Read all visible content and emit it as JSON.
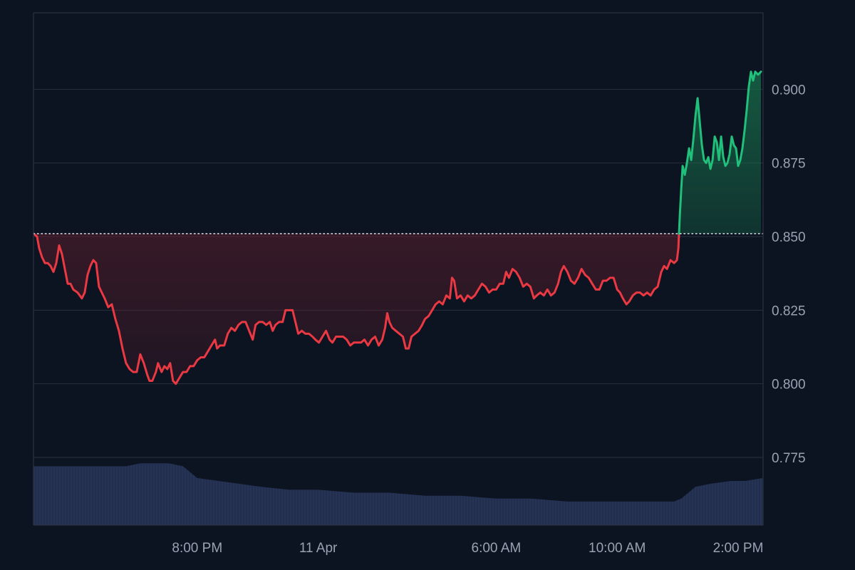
{
  "chart_data": {
    "type": "line",
    "baseline": 0.851,
    "ylim": [
      0.752,
      0.926
    ],
    "y_ticks": [
      {
        "value": 0.775,
        "label": "0.775"
      },
      {
        "value": 0.8,
        "label": "0.800"
      },
      {
        "value": 0.825,
        "label": "0.825"
      },
      {
        "value": 0.85,
        "label": "0.850"
      },
      {
        "value": 0.875,
        "label": "0.875"
      },
      {
        "value": 0.9,
        "label": "0.900"
      }
    ],
    "x_ticks": [
      {
        "at": 230,
        "label": "8:00 PM"
      },
      {
        "at": 400,
        "label": "11 Apr"
      },
      {
        "at": 650,
        "label": "6:00 AM"
      },
      {
        "at": 820,
        "label": "10:00 AM"
      },
      {
        "at": 990,
        "label": "2:00 PM"
      }
    ],
    "x_range": [
      0,
      1025
    ],
    "price_series": [
      [
        0,
        0.851
      ],
      [
        5,
        0.85
      ],
      [
        8,
        0.846
      ],
      [
        12,
        0.843
      ],
      [
        16,
        0.841
      ],
      [
        20,
        0.841
      ],
      [
        24,
        0.84
      ],
      [
        28,
        0.838
      ],
      [
        32,
        0.841
      ],
      [
        36,
        0.847
      ],
      [
        40,
        0.844
      ],
      [
        44,
        0.839
      ],
      [
        48,
        0.834
      ],
      [
        52,
        0.834
      ],
      [
        56,
        0.832
      ],
      [
        62,
        0.831
      ],
      [
        68,
        0.829
      ],
      [
        72,
        0.831
      ],
      [
        76,
        0.837
      ],
      [
        80,
        0.84
      ],
      [
        84,
        0.842
      ],
      [
        88,
        0.841
      ],
      [
        92,
        0.833
      ],
      [
        96,
        0.831
      ],
      [
        100,
        0.829
      ],
      [
        105,
        0.826
      ],
      [
        110,
        0.827
      ],
      [
        115,
        0.822
      ],
      [
        120,
        0.818
      ],
      [
        125,
        0.812
      ],
      [
        130,
        0.807
      ],
      [
        135,
        0.805
      ],
      [
        140,
        0.804
      ],
      [
        145,
        0.804
      ],
      [
        150,
        0.81
      ],
      [
        155,
        0.807
      ],
      [
        160,
        0.803
      ],
      [
        163,
        0.801
      ],
      [
        167,
        0.801
      ],
      [
        172,
        0.804
      ],
      [
        175,
        0.807
      ],
      [
        180,
        0.804
      ],
      [
        184,
        0.806
      ],
      [
        188,
        0.805
      ],
      [
        192,
        0.807
      ],
      [
        196,
        0.801
      ],
      [
        200,
        0.8
      ],
      [
        205,
        0.802
      ],
      [
        210,
        0.804
      ],
      [
        215,
        0.804
      ],
      [
        220,
        0.806
      ],
      [
        225,
        0.806
      ],
      [
        230,
        0.808
      ],
      [
        235,
        0.809
      ],
      [
        240,
        0.809
      ],
      [
        245,
        0.811
      ],
      [
        250,
        0.813
      ],
      [
        255,
        0.815
      ],
      [
        258,
        0.812
      ],
      [
        262,
        0.813
      ],
      [
        268,
        0.813
      ],
      [
        273,
        0.817
      ],
      [
        278,
        0.819
      ],
      [
        283,
        0.818
      ],
      [
        288,
        0.82
      ],
      [
        293,
        0.821
      ],
      [
        298,
        0.821
      ],
      [
        303,
        0.818
      ],
      [
        308,
        0.815
      ],
      [
        312,
        0.82
      ],
      [
        317,
        0.821
      ],
      [
        322,
        0.821
      ],
      [
        327,
        0.82
      ],
      [
        332,
        0.821
      ],
      [
        336,
        0.818
      ],
      [
        340,
        0.82
      ],
      [
        345,
        0.821
      ],
      [
        350,
        0.821
      ],
      [
        354,
        0.825
      ],
      [
        358,
        0.825
      ],
      [
        364,
        0.825
      ],
      [
        368,
        0.821
      ],
      [
        372,
        0.817
      ],
      [
        377,
        0.818
      ],
      [
        382,
        0.817
      ],
      [
        387,
        0.817
      ],
      [
        392,
        0.816
      ],
      [
        396,
        0.815
      ],
      [
        401,
        0.814
      ],
      [
        406,
        0.816
      ],
      [
        411,
        0.818
      ],
      [
        416,
        0.815
      ],
      [
        420,
        0.814
      ],
      [
        425,
        0.816
      ],
      [
        430,
        0.816
      ],
      [
        435,
        0.816
      ],
      [
        440,
        0.815
      ],
      [
        445,
        0.813
      ],
      [
        450,
        0.814
      ],
      [
        455,
        0.814
      ],
      [
        460,
        0.814
      ],
      [
        465,
        0.815
      ],
      [
        470,
        0.813
      ],
      [
        475,
        0.815
      ],
      [
        480,
        0.816
      ],
      [
        485,
        0.813
      ],
      [
        490,
        0.815
      ],
      [
        494,
        0.819
      ],
      [
        497,
        0.824
      ],
      [
        500,
        0.821
      ],
      [
        504,
        0.819
      ],
      [
        509,
        0.818
      ],
      [
        514,
        0.817
      ],
      [
        519,
        0.816
      ],
      [
        523,
        0.812
      ],
      [
        527,
        0.812
      ],
      [
        531,
        0.816
      ],
      [
        536,
        0.817
      ],
      [
        541,
        0.818
      ],
      [
        546,
        0.82
      ],
      [
        550,
        0.822
      ],
      [
        555,
        0.823
      ],
      [
        560,
        0.825
      ],
      [
        565,
        0.827
      ],
      [
        570,
        0.828
      ],
      [
        575,
        0.827
      ],
      [
        580,
        0.83
      ],
      [
        585,
        0.829
      ],
      [
        588,
        0.836
      ],
      [
        591,
        0.835
      ],
      [
        595,
        0.829
      ],
      [
        600,
        0.83
      ],
      [
        605,
        0.828
      ],
      [
        610,
        0.83
      ],
      [
        615,
        0.829
      ],
      [
        620,
        0.83
      ],
      [
        625,
        0.832
      ],
      [
        630,
        0.834
      ],
      [
        635,
        0.833
      ],
      [
        640,
        0.831
      ],
      [
        645,
        0.832
      ],
      [
        650,
        0.832
      ],
      [
        655,
        0.834
      ],
      [
        660,
        0.834
      ],
      [
        664,
        0.838
      ],
      [
        668,
        0.836
      ],
      [
        673,
        0.839
      ],
      [
        678,
        0.838
      ],
      [
        683,
        0.836
      ],
      [
        688,
        0.833
      ],
      [
        693,
        0.834
      ],
      [
        698,
        0.833
      ],
      [
        703,
        0.829
      ],
      [
        707,
        0.83
      ],
      [
        712,
        0.831
      ],
      [
        717,
        0.83
      ],
      [
        722,
        0.832
      ],
      [
        727,
        0.83
      ],
      [
        732,
        0.831
      ],
      [
        737,
        0.834
      ],
      [
        741,
        0.838
      ],
      [
        745,
        0.84
      ],
      [
        750,
        0.838
      ],
      [
        755,
        0.835
      ],
      [
        760,
        0.834
      ],
      [
        765,
        0.836
      ],
      [
        770,
        0.839
      ],
      [
        775,
        0.837
      ],
      [
        780,
        0.836
      ],
      [
        785,
        0.834
      ],
      [
        790,
        0.832
      ],
      [
        795,
        0.832
      ],
      [
        800,
        0.835
      ],
      [
        805,
        0.835
      ],
      [
        810,
        0.836
      ],
      [
        815,
        0.836
      ],
      [
        820,
        0.832
      ],
      [
        824,
        0.831
      ],
      [
        828,
        0.829
      ],
      [
        833,
        0.827
      ],
      [
        837,
        0.828
      ],
      [
        842,
        0.83
      ],
      [
        847,
        0.831
      ],
      [
        852,
        0.831
      ],
      [
        857,
        0.83
      ],
      [
        862,
        0.831
      ],
      [
        867,
        0.83
      ],
      [
        872,
        0.832
      ],
      [
        877,
        0.833
      ],
      [
        882,
        0.838
      ],
      [
        886,
        0.84
      ],
      [
        890,
        0.839
      ],
      [
        895,
        0.842
      ],
      [
        900,
        0.841
      ],
      [
        904,
        0.842
      ],
      [
        906,
        0.846
      ],
      [
        908,
        0.857
      ],
      [
        910,
        0.866
      ],
      [
        912,
        0.874
      ],
      [
        915,
        0.871
      ],
      [
        918,
        0.875
      ],
      [
        921,
        0.88
      ],
      [
        924,
        0.876
      ],
      [
        927,
        0.883
      ],
      [
        930,
        0.891
      ],
      [
        933,
        0.897
      ],
      [
        936,
        0.889
      ],
      [
        939,
        0.881
      ],
      [
        942,
        0.876
      ],
      [
        945,
        0.875
      ],
      [
        948,
        0.877
      ],
      [
        951,
        0.873
      ],
      [
        954,
        0.876
      ],
      [
        957,
        0.884
      ],
      [
        960,
        0.882
      ],
      [
        963,
        0.876
      ],
      [
        966,
        0.884
      ],
      [
        969,
        0.877
      ],
      [
        972,
        0.874
      ],
      [
        975,
        0.875
      ],
      [
        978,
        0.878
      ],
      [
        981,
        0.884
      ],
      [
        984,
        0.881
      ],
      [
        987,
        0.88
      ],
      [
        990,
        0.874
      ],
      [
        993,
        0.876
      ],
      [
        996,
        0.88
      ],
      [
        999,
        0.886
      ],
      [
        1002,
        0.893
      ],
      [
        1005,
        0.901
      ],
      [
        1008,
        0.906
      ],
      [
        1011,
        0.903
      ],
      [
        1014,
        0.906
      ],
      [
        1018,
        0.905
      ],
      [
        1022,
        0.906
      ]
    ],
    "volume_series": [
      [
        0,
        0.772
      ],
      [
        80,
        0.772
      ],
      [
        130,
        0.772
      ],
      [
        150,
        0.773
      ],
      [
        190,
        0.773
      ],
      [
        210,
        0.772
      ],
      [
        230,
        0.768
      ],
      [
        260,
        0.767
      ],
      [
        290,
        0.766
      ],
      [
        320,
        0.765
      ],
      [
        360,
        0.764
      ],
      [
        400,
        0.764
      ],
      [
        450,
        0.763
      ],
      [
        500,
        0.763
      ],
      [
        550,
        0.762
      ],
      [
        600,
        0.762
      ],
      [
        650,
        0.761
      ],
      [
        700,
        0.761
      ],
      [
        750,
        0.76
      ],
      [
        800,
        0.76
      ],
      [
        850,
        0.76
      ],
      [
        880,
        0.76
      ],
      [
        900,
        0.76
      ],
      [
        910,
        0.761
      ],
      [
        920,
        0.763
      ],
      [
        930,
        0.765
      ],
      [
        950,
        0.766
      ],
      [
        980,
        0.767
      ],
      [
        1000,
        0.767
      ],
      [
        1025,
        0.768
      ]
    ],
    "colors": {
      "background": "#0c1321",
      "up_line": "#21c07a",
      "down_line": "#ea3943",
      "up_fill": "#18704b",
      "down_fill": "#5a1e2b",
      "grid": "#2a3242",
      "volume": "#2c3a5e",
      "baseline_dots": "#cfd6e2",
      "axis_text": "#9aa3b2"
    }
  }
}
